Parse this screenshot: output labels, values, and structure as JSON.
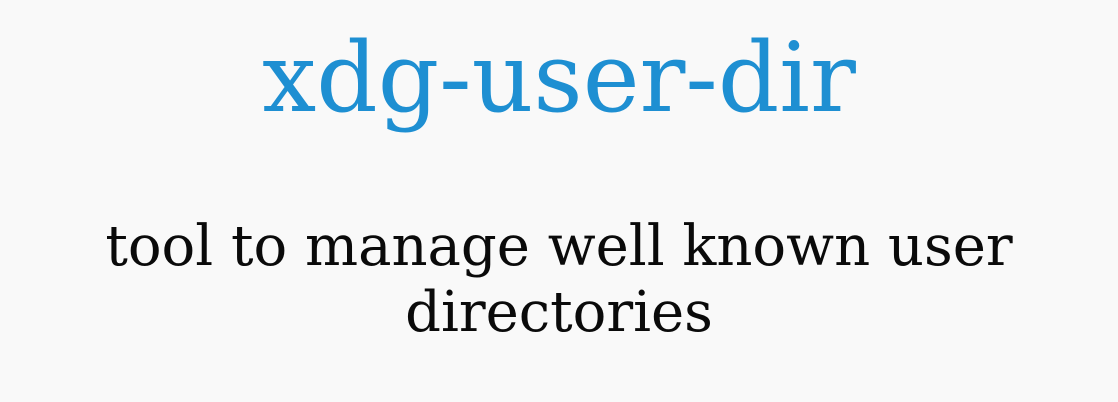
{
  "page": {
    "title": "xdg-user-dir",
    "subtitle": "tool to manage well known user directories"
  },
  "colors": {
    "background": "#f9f9f9",
    "title": "#1e8fd2",
    "subtitle": "#0a0a0a"
  }
}
